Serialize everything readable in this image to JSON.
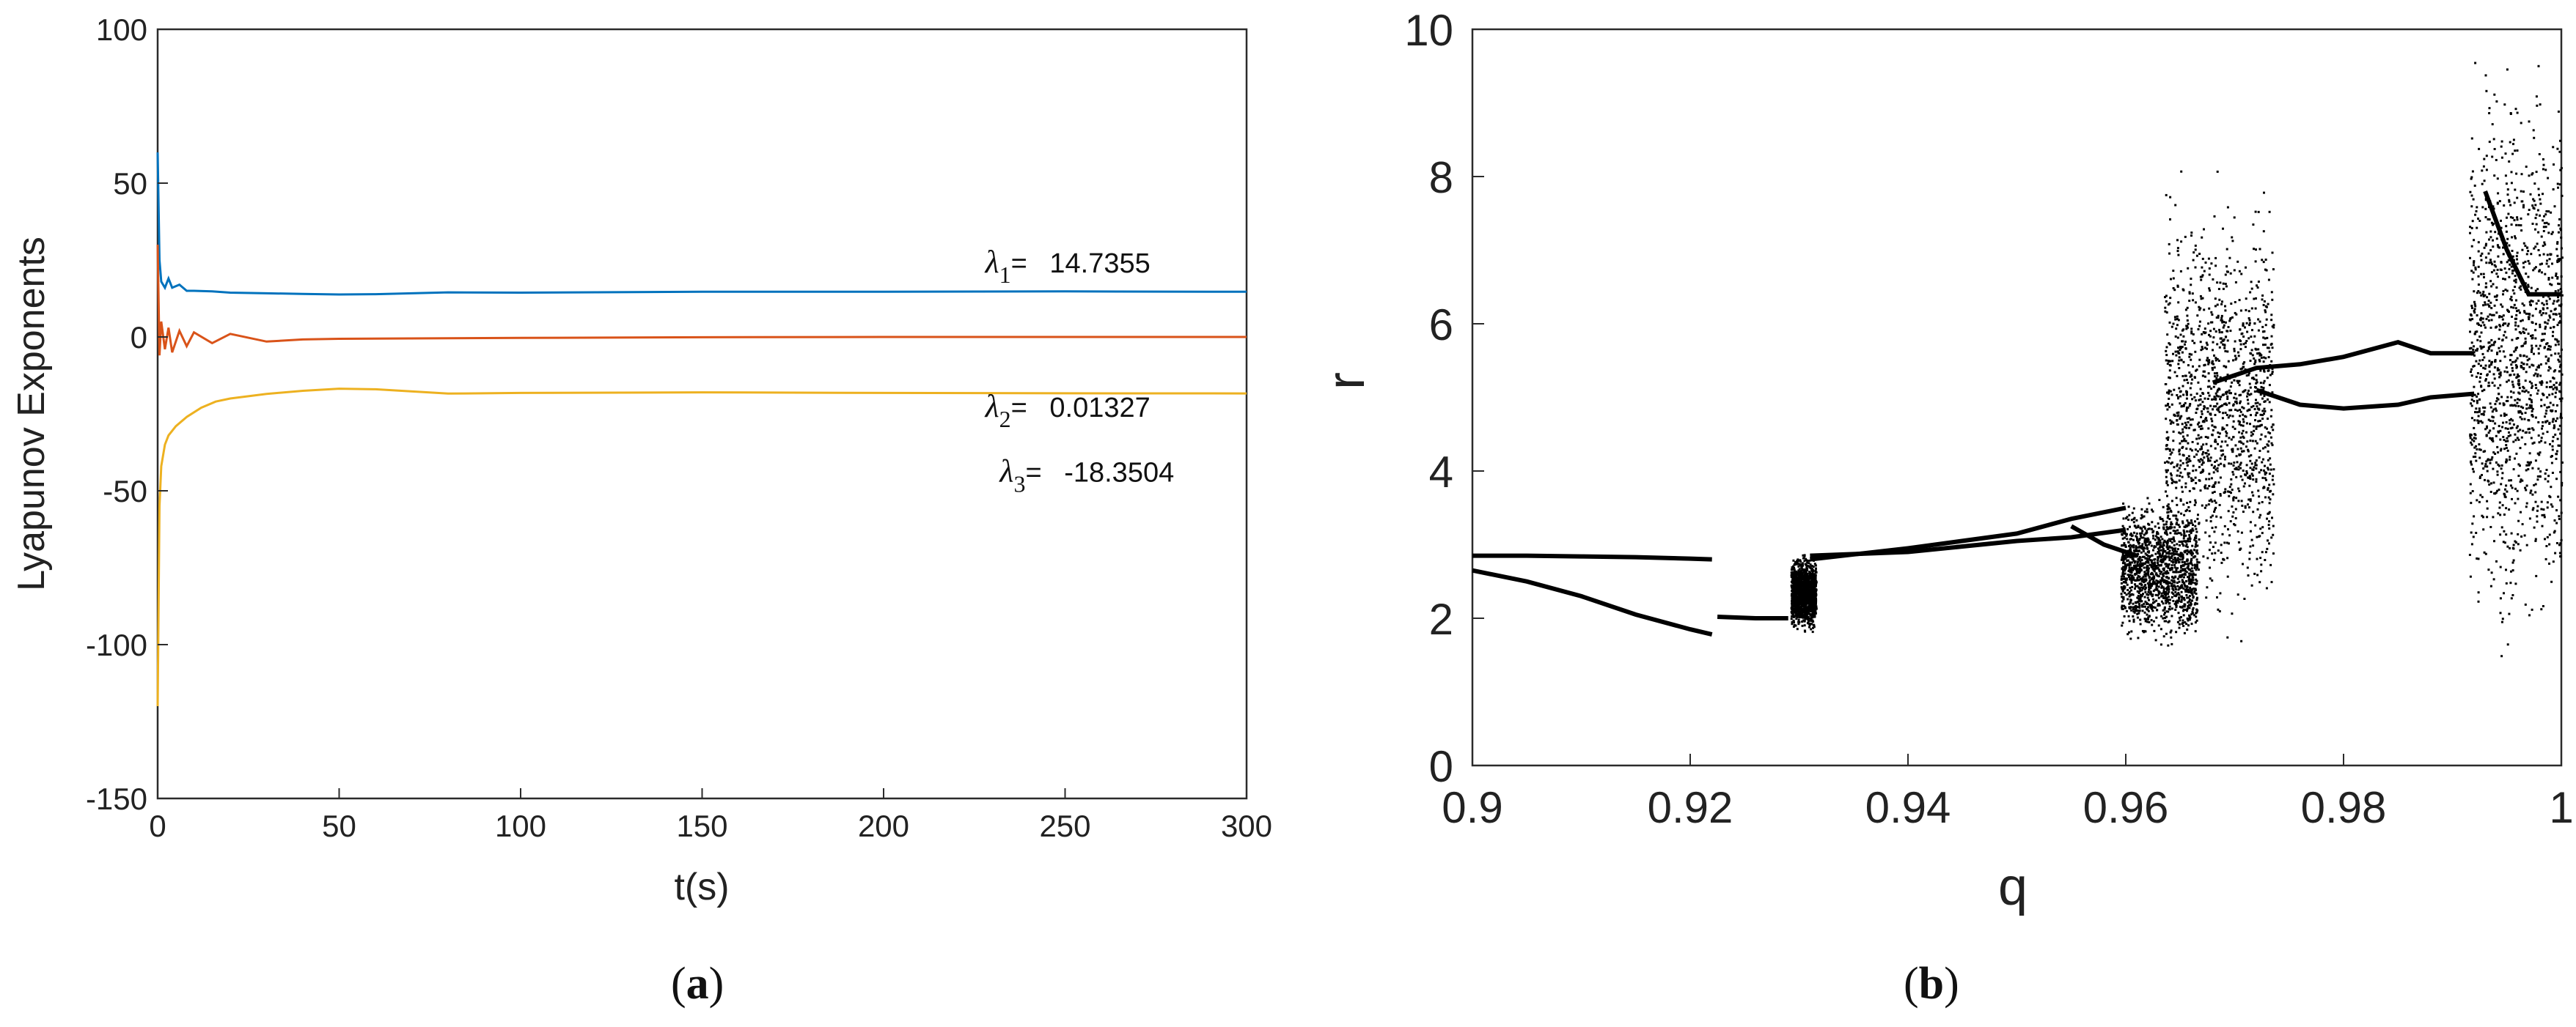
{
  "chart_data": [
    {
      "type": "line",
      "panel_label": "a",
      "xlabel": "t(s)",
      "ylabel": "Lyapunov Exponents",
      "xlim": [
        0,
        300
      ],
      "ylim": [
        -150,
        100
      ],
      "xticks": [
        "0",
        "50",
        "100",
        "150",
        "200",
        "250",
        "300"
      ],
      "yticks": [
        "100",
        "50",
        "0",
        "-50",
        "-100",
        "-150"
      ],
      "grid": false,
      "series": [
        {
          "name": "λ1",
          "color": "#0072BD",
          "final_value": 14.7355,
          "x": [
            0,
            0.5,
            1,
            2,
            3,
            4,
            6,
            8,
            10,
            15,
            20,
            30,
            40,
            50,
            60,
            80,
            100,
            150,
            200,
            250,
            300
          ],
          "values": [
            60,
            25,
            18,
            16,
            19,
            16,
            17,
            15,
            15,
            14.8,
            14.4,
            14.2,
            14,
            13.8,
            13.9,
            14.5,
            14.4,
            14.7,
            14.7,
            14.8,
            14.7
          ]
        },
        {
          "name": "λ2",
          "color": "#D95319",
          "final_value": 0.01327,
          "x": [
            0,
            0.5,
            1,
            2,
            3,
            4,
            6,
            8,
            10,
            15,
            20,
            30,
            40,
            50,
            100,
            150,
            200,
            250,
            300
          ],
          "values": [
            30,
            -6,
            5,
            -4,
            3,
            -5,
            2,
            -3,
            1.5,
            -2,
            1,
            -1.5,
            -0.8,
            -0.6,
            -0.3,
            -0.1,
            0,
            0,
            0.01
          ]
        },
        {
          "name": "λ3",
          "color": "#EDB120",
          "final_value": -18.3504,
          "x": [
            0,
            0.5,
            1,
            2,
            3,
            5,
            8,
            12,
            16,
            20,
            30,
            40,
            50,
            60,
            80,
            100,
            150,
            200,
            250,
            300
          ],
          "values": [
            -120,
            -55,
            -42,
            -35,
            -32,
            -29,
            -26,
            -23,
            -21,
            -20,
            -18.5,
            -17.5,
            -16.8,
            -17,
            -18.4,
            -18.2,
            -18,
            -18.2,
            -18.3,
            -18.35
          ]
        }
      ],
      "annotations": [
        {
          "symbol": "λ",
          "sub": "1",
          "text": "= ",
          "value": "14.7355",
          "x": 228,
          "y": 21
        },
        {
          "symbol": "λ",
          "sub": "2",
          "text": "= ",
          "value": "0.01327",
          "x": 228,
          "y": -26
        },
        {
          "symbol": "λ",
          "sub": "3",
          "text": "= ",
          "value": "-18.3504",
          "x": 232,
          "y": -47
        }
      ],
      "caption": "a"
    },
    {
      "type": "scatter",
      "panel_label": "b",
      "xlabel": "q",
      "ylabel": "r",
      "xlim": [
        0.9,
        1
      ],
      "ylim": [
        0,
        10
      ],
      "xticks": [
        "0.9",
        "0.92",
        "0.94",
        "0.96",
        "0.98",
        "1"
      ],
      "yticks": [
        "10",
        "8",
        "6",
        "4",
        "2",
        "0"
      ],
      "grid": false,
      "color": "#000000",
      "branches": [
        {
          "x": [
            0.9,
            0.905,
            0.91,
            0.915,
            0.92,
            0.922
          ],
          "values": [
            2.85,
            2.85,
            2.84,
            2.83,
            2.81,
            2.8
          ]
        },
        {
          "x": [
            0.9,
            0.905,
            0.91,
            0.915,
            0.92,
            0.922
          ],
          "values": [
            2.65,
            2.5,
            2.3,
            2.05,
            1.85,
            1.78
          ]
        },
        {
          "x": [
            0.9225,
            0.926,
            0.929
          ],
          "values": [
            2.02,
            2.0,
            2.0
          ]
        },
        {
          "x": [
            0.931,
            0.94,
            0.95,
            0.955,
            0.96
          ],
          "values": [
            2.8,
            2.95,
            3.15,
            3.35,
            3.5
          ]
        },
        {
          "x": [
            0.931,
            0.94,
            0.95,
            0.955,
            0.96
          ],
          "values": [
            2.85,
            2.9,
            3.05,
            3.1,
            3.2
          ]
        },
        {
          "x": [
            0.955,
            0.958,
            0.961
          ],
          "values": [
            3.25,
            3.0,
            2.85
          ]
        },
        {
          "x": [
            0.968,
            0.972,
            0.976,
            0.98,
            0.985,
            0.988,
            0.992
          ],
          "values": [
            5.2,
            5.4,
            5.45,
            5.55,
            5.75,
            5.6,
            5.6
          ]
        },
        {
          "x": [
            0.972,
            0.976,
            0.98,
            0.985,
            0.988,
            0.992
          ],
          "values": [
            5.1,
            4.9,
            4.85,
            4.9,
            5.0,
            5.05
          ]
        },
        {
          "x": [
            0.993,
            0.995,
            0.997,
            1.0
          ],
          "values": [
            7.8,
            7.0,
            6.4,
            6.4
          ]
        }
      ],
      "chaotic_bands": [
        {
          "x_range": [
            0.9292,
            0.9315
          ],
          "y_range": [
            1.75,
            2.95
          ]
        },
        {
          "x_range": [
            0.9595,
            0.9665
          ],
          "y_range": [
            1.5,
            3.8
          ]
        },
        {
          "x_range": [
            0.9635,
            0.9735
          ],
          "y_range": [
            1.5,
            8.2
          ]
        },
        {
          "x_range": [
            0.9915,
            1.0
          ],
          "y_range": [
            1.2,
            10
          ]
        }
      ],
      "caption": "b"
    }
  ]
}
